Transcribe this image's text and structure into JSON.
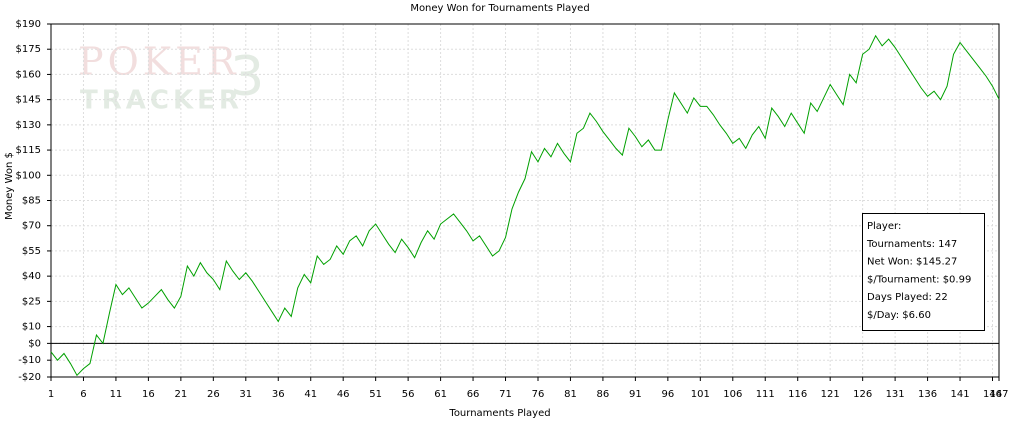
{
  "chart_data": {
    "type": "line",
    "title": "Money Won for Tournaments Played",
    "x_label": "Tournaments Played",
    "y_label": "Money Won $",
    "watermark": [
      "POKER",
      "TRACKER",
      "3"
    ],
    "x": [
      1,
      2,
      3,
      4,
      5,
      6,
      7,
      8,
      9,
      10,
      11,
      12,
      13,
      14,
      15,
      16,
      17,
      18,
      19,
      20,
      21,
      22,
      23,
      24,
      25,
      26,
      27,
      28,
      29,
      30,
      31,
      32,
      33,
      34,
      35,
      36,
      37,
      38,
      39,
      40,
      41,
      42,
      43,
      44,
      45,
      46,
      47,
      48,
      49,
      50,
      51,
      52,
      53,
      54,
      55,
      56,
      57,
      58,
      59,
      60,
      61,
      62,
      63,
      64,
      65,
      66,
      67,
      68,
      69,
      70,
      71,
      72,
      73,
      74,
      75,
      76,
      77,
      78,
      79,
      80,
      81,
      82,
      83,
      84,
      85,
      86,
      87,
      88,
      89,
      90,
      91,
      92,
      93,
      94,
      95,
      96,
      97,
      98,
      99,
      100,
      101,
      102,
      103,
      104,
      105,
      106,
      107,
      108,
      109,
      110,
      111,
      112,
      113,
      114,
      115,
      116,
      117,
      118,
      119,
      120,
      121,
      122,
      123,
      124,
      125,
      126,
      127,
      128,
      129,
      130,
      131,
      132,
      133,
      134,
      135,
      136,
      137,
      138,
      139,
      140,
      141,
      142,
      143,
      144,
      145,
      146,
      147
    ],
    "series": [
      {
        "name": "Money Won",
        "color": "#00a000",
        "values": [
          -5,
          -10,
          -6,
          -12,
          -19,
          -15,
          -12,
          5,
          0,
          18,
          35,
          29,
          33,
          27,
          21,
          24,
          28,
          32,
          26,
          21,
          28,
          46,
          40,
          48,
          42,
          38,
          32,
          49,
          43,
          38,
          42,
          37,
          31,
          25,
          19,
          13,
          21,
          16,
          33,
          41,
          36,
          52,
          47,
          50,
          58,
          53,
          61,
          64,
          58,
          67,
          71,
          65,
          59,
          54,
          62,
          57,
          51,
          60,
          67,
          62,
          71,
          74,
          77,
          72,
          67,
          61,
          64,
          58,
          52,
          55,
          63,
          80,
          90,
          98,
          114,
          108,
          116,
          111,
          119,
          113,
          108,
          125,
          128,
          137,
          132,
          126,
          121,
          116,
          112,
          128,
          123,
          117,
          121,
          115,
          115,
          133,
          149,
          143,
          137,
          146,
          141,
          141,
          136,
          130,
          125,
          119,
          122,
          116,
          124,
          129,
          122,
          140,
          135,
          129,
          137,
          131,
          125,
          143,
          138,
          146,
          154,
          148,
          142,
          160,
          155,
          172,
          175,
          183,
          177,
          181,
          176,
          170,
          164,
          158,
          152,
          147,
          150,
          145,
          153,
          172,
          179,
          174,
          169,
          164,
          159,
          153,
          145.27
        ]
      }
    ],
    "xlim": [
      1,
      147
    ],
    "xticks": [
      1,
      6,
      11,
      16,
      21,
      26,
      31,
      36,
      41,
      46,
      51,
      56,
      61,
      66,
      71,
      76,
      81,
      86,
      91,
      96,
      101,
      106,
      111,
      116,
      121,
      126,
      131,
      136,
      141,
      146,
      147
    ],
    "ylim": [
      -20,
      190
    ],
    "yticks": [
      {
        "value": -20,
        "label": "-$20"
      },
      {
        "value": -10,
        "label": "-$10"
      },
      {
        "value": 0,
        "label": "$0"
      },
      {
        "value": 10,
        "label": "$10"
      },
      {
        "value": 25,
        "label": "$25"
      },
      {
        "value": 40,
        "label": "$40"
      },
      {
        "value": 55,
        "label": "$55"
      },
      {
        "value": 70,
        "label": "$70"
      },
      {
        "value": 85,
        "label": "$85"
      },
      {
        "value": 100,
        "label": "$100"
      },
      {
        "value": 115,
        "label": "$115"
      },
      {
        "value": 130,
        "label": "$130"
      },
      {
        "value": 145,
        "label": "$145"
      },
      {
        "value": 160,
        "label": "$160"
      },
      {
        "value": 175,
        "label": "$175"
      },
      {
        "value": 190,
        "label": "$190"
      }
    ],
    "grid": true,
    "stats_box": [
      "Player:",
      "Tournaments: 147",
      "Net Won: $145.27",
      "$/Tournament: $0.99",
      "Days Played: 22",
      "$/Day: $6.60"
    ]
  }
}
